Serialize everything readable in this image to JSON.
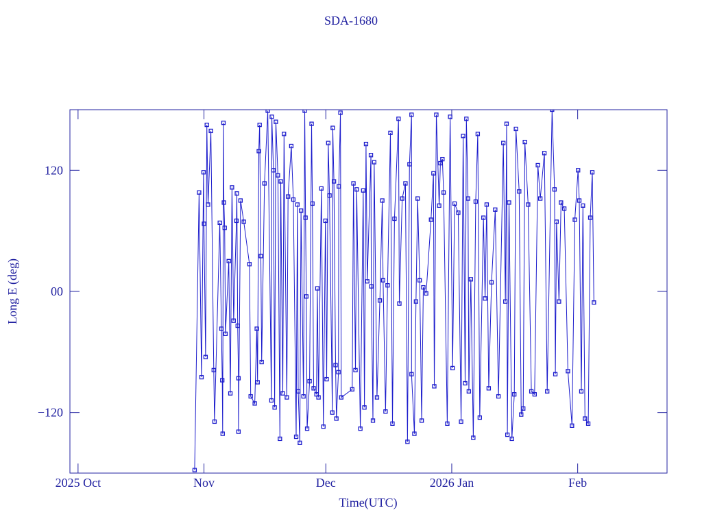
{
  "chart_data": {
    "type": "line",
    "title": "SDA-1680",
    "x_label": "Time(UTC)",
    "y_label": "Long E (deg)",
    "xlim": [
      -2,
      145
    ],
    "ylim": [
      -180,
      180
    ],
    "xticks": [
      {
        "value": 0,
        "label": "2025 Oct"
      },
      {
        "value": 31,
        "label": "Nov"
      },
      {
        "value": 61,
        "label": "Dec"
      },
      {
        "value": 92,
        "label": "2026 Jan"
      },
      {
        "value": 123,
        "label": "Feb"
      }
    ],
    "yticks": [
      {
        "value": -120,
        "label": "−120"
      },
      {
        "value": 0,
        "label": "00"
      },
      120
    ],
    "series": [
      {
        "color": "#1c1ccc",
        "x": [
          28.7,
          29.8,
          30.4,
          30.9,
          31.0,
          31.4,
          31.7,
          32.0,
          32.7,
          33.4,
          33.6,
          34.9,
          35.3,
          35.5,
          35.6,
          35.8,
          35.9,
          36.1,
          36.3,
          37.1,
          37.5,
          37.9,
          38.3,
          39.0,
          39.1,
          39.3,
          39.5,
          39.5,
          40.0,
          40.8,
          42.2,
          42.5,
          43.5,
          44.0,
          44.2,
          44.5,
          44.7,
          45.0,
          45.2,
          45.9,
          46.7,
          47.6,
          47.7,
          48.1,
          48.4,
          48.7,
          49.2,
          49.7,
          49.9,
          50.4,
          50.7,
          51.4,
          51.7,
          52.5,
          53.0,
          53.7,
          54.0,
          54.2,
          54.6,
          54.9,
          55.5,
          55.8,
          56.0,
          56.2,
          56.4,
          57.0,
          57.5,
          57.7,
          58.0,
          58.7,
          58.9,
          59.2,
          59.9,
          60.4,
          60.9,
          61.2,
          61.6,
          61.9,
          62.6,
          62.7,
          63.0,
          63.4,
          63.6,
          64.1,
          64.2,
          64.6,
          64.8,
          67.5,
          67.8,
          68.3,
          68.6,
          69.5,
          70.2,
          70.5,
          70.9,
          71.2,
          72.1,
          72.2,
          72.6,
          72.9,
          73.6,
          74.3,
          74.9,
          75.1,
          75.7,
          76.2,
          76.9,
          77.4,
          77.9,
          78.9,
          79.1,
          79.8,
          80.6,
          81.1,
          81.6,
          82.1,
          82.1,
          82.8,
          83.2,
          83.6,
          84.1,
          84.6,
          85.0,
          85.7,
          86.9,
          87.5,
          87.7,
          88.2,
          88.9,
          89.2,
          89.7,
          90.0,
          90.9,
          91.6,
          92.2,
          92.7,
          93.6,
          94.3,
          94.8,
          95.3,
          95.6,
          96.0,
          96.2,
          96.7,
          97.3,
          97.9,
          98.4,
          98.9,
          99.8,
          100.2,
          100.6,
          101.1,
          101.8,
          102.7,
          103.5,
          104.7,
          105.2,
          105.5,
          105.7,
          106.1,
          106.8,
          107.4,
          107.8,
          108.6,
          109.1,
          109.6,
          110.0,
          110.8,
          111.6,
          112.4,
          113.2,
          113.8,
          114.8,
          115.5,
          116.7,
          117.3,
          117.5,
          117.8,
          118.4,
          118.9,
          119.7,
          120.6,
          121.6,
          122.3,
          123.1,
          123.4,
          123.9,
          124.3,
          124.8,
          125.6,
          126.1,
          126.6,
          127.0
        ],
        "values": [
          -177,
          98,
          -85,
          118,
          67,
          -65,
          165,
          86,
          159,
          -78,
          -129,
          68,
          -37,
          -88,
          -141,
          167,
          88,
          63,
          -42,
          30,
          -101,
          103,
          -29,
          70,
          97,
          -34,
          -86,
          -139,
          90,
          69,
          27,
          -104,
          -111,
          -37,
          -90,
          139,
          165,
          35,
          -70,
          107,
          179,
          -108,
          173,
          120,
          -115,
          168,
          115,
          -146,
          109,
          -101,
          156,
          -105,
          94,
          144,
          91,
          -144,
          86,
          -99,
          -150,
          80,
          -104,
          179,
          73,
          -5,
          -136,
          -89,
          166,
          87,
          -96,
          -102,
          3,
          -105,
          102,
          -134,
          70,
          -87,
          147,
          95,
          -120,
          162,
          109,
          -73,
          -126,
          -80,
          104,
          177,
          -105,
          -97,
          107,
          -78,
          101,
          -136,
          100,
          -115,
          146,
          10,
          135,
          5,
          -128,
          128,
          -105,
          -9,
          90,
          11,
          -119,
          6,
          157,
          -131,
          72,
          171,
          -12,
          92,
          107,
          -149,
          126,
          175,
          -82,
          -141,
          -10,
          92,
          11,
          -128,
          4,
          -2,
          71,
          117,
          -94,
          175,
          85,
          127,
          131,
          98,
          -131,
          173,
          -76,
          87,
          78,
          -129,
          154,
          -91,
          171,
          92,
          -99,
          12,
          -145,
          89,
          156,
          -125,
          73,
          -7,
          86,
          -96,
          9,
          81,
          -104,
          147,
          -10,
          166,
          -142,
          88,
          -146,
          -102,
          161,
          99,
          -122,
          -116,
          148,
          86,
          -99,
          -102,
          125,
          92,
          137,
          -99,
          180,
          101,
          -82,
          69,
          -10,
          88,
          82,
          -79,
          -133,
          71,
          120,
          90,
          -99,
          85,
          -126,
          -131,
          73,
          118,
          -11
        ]
      }
    ]
  }
}
